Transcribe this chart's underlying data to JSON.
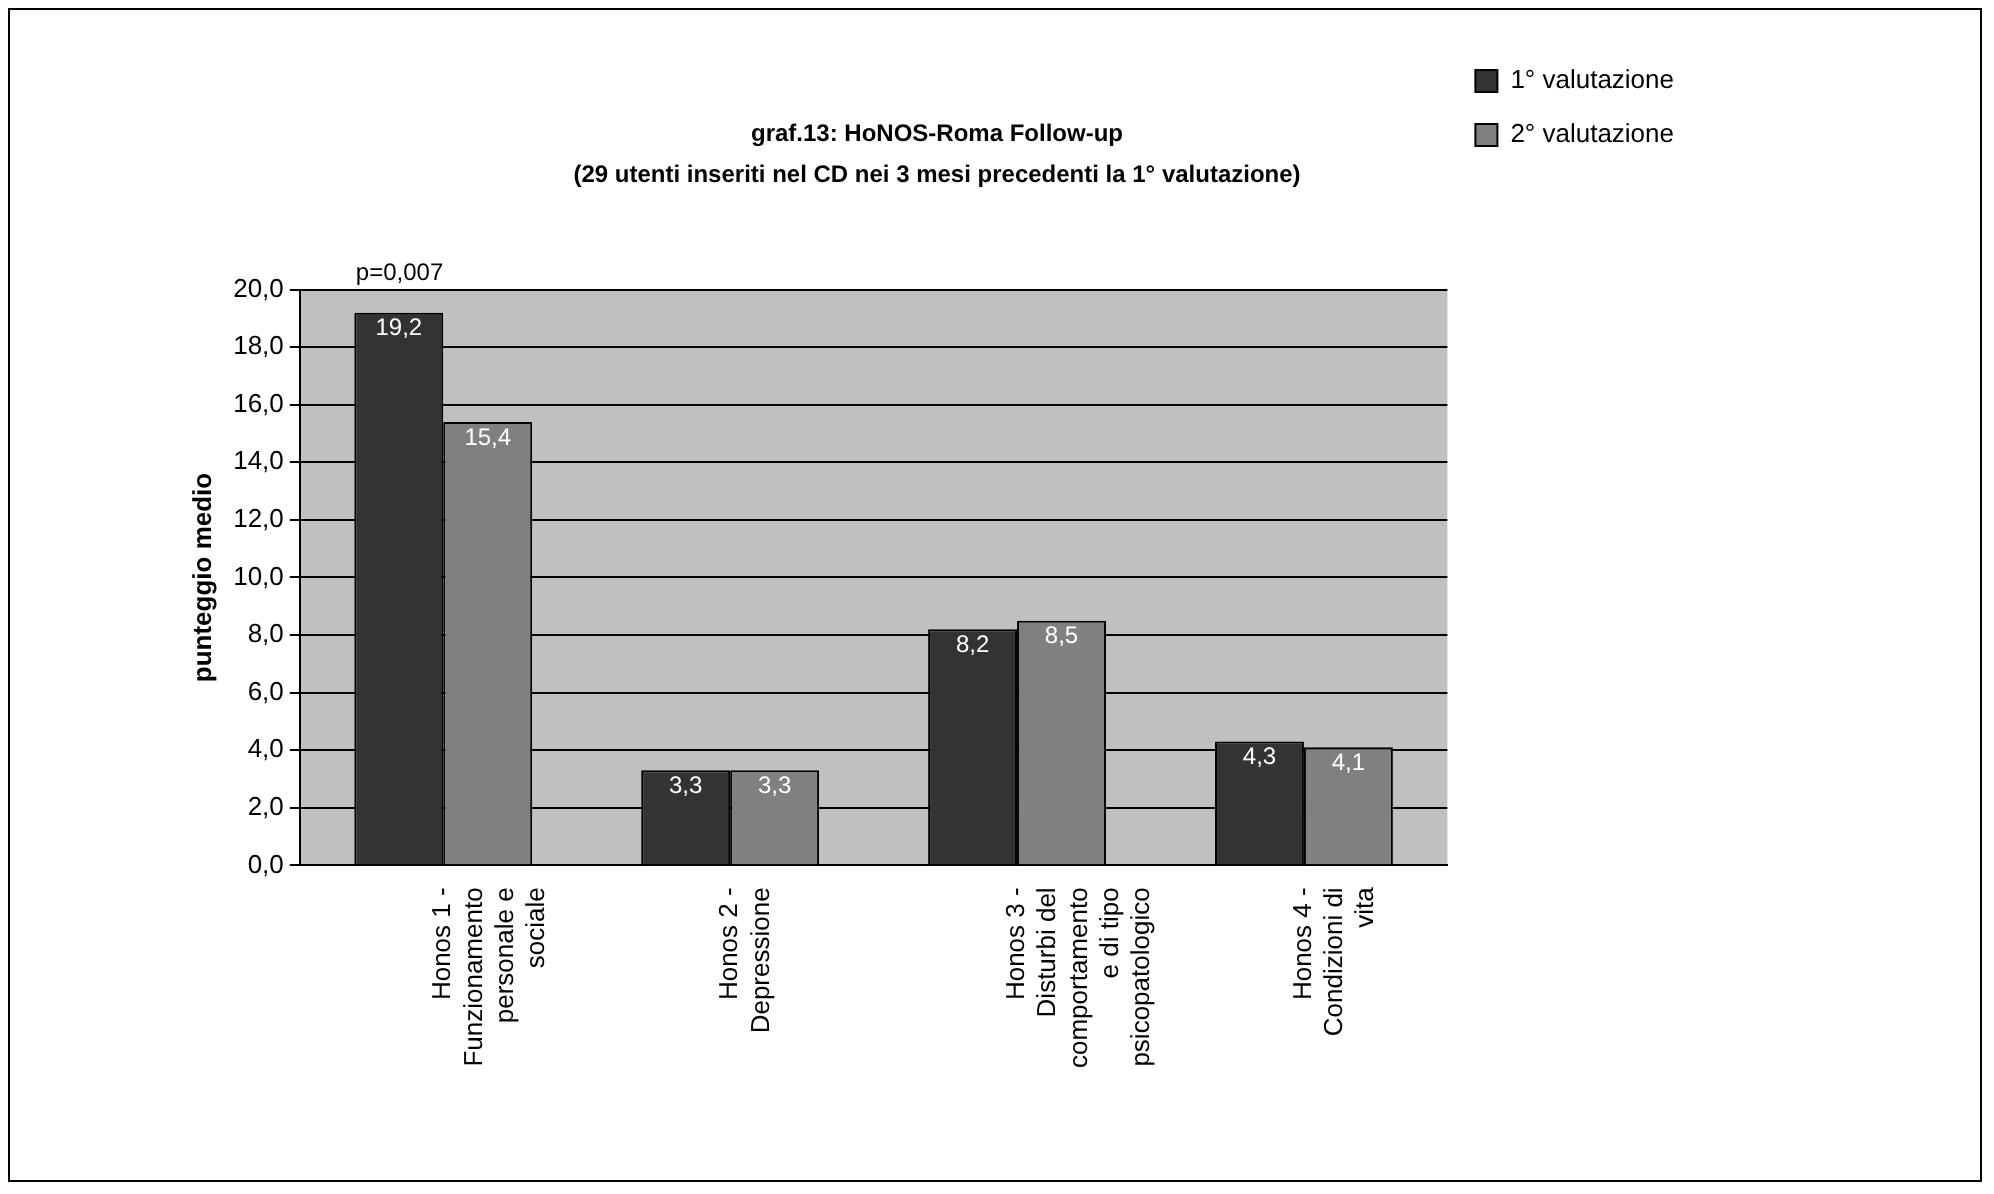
{
  "chart_data": {
    "type": "bar",
    "title": "graf.13: HoNOS-Roma Follow-up",
    "subtitle": "(29 utenti inseriti nel CD nei 3 mesi precedenti la 1° valutazione)",
    "ylabel": "punteggio medio",
    "categories": [
      "Honos 1 - Funzionamento personale e sociale",
      "Honos 2 - Depressione",
      "Honos 3 - Disturbi del comportamento e di tipo psicopatologico",
      "Honos 4 - Condizioni di vita"
    ],
    "series": [
      {
        "name": "1° valutazione",
        "color": "#333333",
        "values": [
          19.2,
          3.3,
          8.2,
          4.3
        ],
        "value_labels": [
          "19,2",
          "3,3",
          "8,2",
          "4,3"
        ]
      },
      {
        "name": "2° valutazione",
        "color": "#808080",
        "values": [
          15.4,
          3.3,
          8.5,
          4.1
        ],
        "value_labels": [
          "15,4",
          "3,3",
          "8,5",
          "4,1"
        ]
      }
    ],
    "ylim": [
      0,
      20
    ],
    "yticks": [
      {
        "value": 0,
        "label": "0,0"
      },
      {
        "value": 2,
        "label": "2,0"
      },
      {
        "value": 4,
        "label": "4,0"
      },
      {
        "value": 6,
        "label": "6,0"
      },
      {
        "value": 8,
        "label": "8,0"
      },
      {
        "value": 10,
        "label": "10,0"
      },
      {
        "value": 12,
        "label": "12,0"
      },
      {
        "value": 14,
        "label": "14,0"
      },
      {
        "value": 16,
        "label": "16,0"
      },
      {
        "value": 18,
        "label": "18,0"
      },
      {
        "value": 20,
        "label": "20,0"
      }
    ],
    "grid": "y",
    "legend": "right",
    "annotations": [
      "p=0,007"
    ]
  }
}
